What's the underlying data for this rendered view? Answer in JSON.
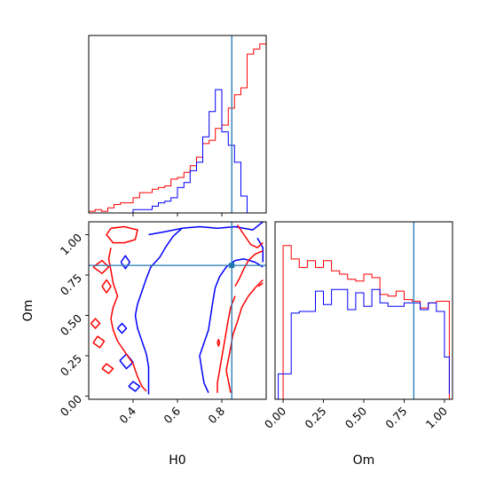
{
  "chart_data": {
    "type": "corner",
    "parameters": [
      "H0",
      "Om"
    ],
    "truth": {
      "H0": 0.845,
      "Om": 0.81,
      "color": "#1f77b4"
    },
    "series_colors": [
      "#ff0000",
      "#0000ff"
    ],
    "panels": {
      "hist_H0": {
        "xlim": [
          0.2,
          1.0
        ],
        "bin_edges": [
          0.2,
          0.229,
          0.257,
          0.286,
          0.314,
          0.343,
          0.371,
          0.4,
          0.429,
          0.457,
          0.486,
          0.514,
          0.543,
          0.571,
          0.6,
          0.629,
          0.657,
          0.686,
          0.714,
          0.743,
          0.771,
          0.8,
          0.829,
          0.857,
          0.886,
          0.914,
          0.943,
          0.971,
          1.0
        ],
        "series": [
          {
            "color": "red",
            "values": [
              0.01,
              0.02,
              0.01,
              0.03,
              0.05,
              0.06,
              0.06,
              0.09,
              0.12,
              0.12,
              0.14,
              0.15,
              0.16,
              0.2,
              0.21,
              0.24,
              0.28,
              0.33,
              0.41,
              0.43,
              0.5,
              0.52,
              0.62,
              0.7,
              0.74,
              0.94,
              0.97,
              1.0
            ]
          },
          {
            "color": "blue",
            "values": [
              0.0,
              0.0,
              0.0,
              0.0,
              0.0,
              0.0,
              0.0,
              0.02,
              0.02,
              0.02,
              0.04,
              0.06,
              0.07,
              0.09,
              0.15,
              0.18,
              0.25,
              0.3,
              0.45,
              0.6,
              0.73,
              0.48,
              0.4,
              0.3,
              0.1,
              0.0,
              0.0,
              0.0
            ]
          }
        ]
      },
      "hist_Om": {
        "xlim": [
          -0.05,
          1.05
        ],
        "xticks": [
          0.0,
          0.25,
          0.5,
          0.75,
          1.0
        ],
        "xticklabels": [
          "0.00",
          "0.25",
          "0.50",
          "0.75",
          "1.00"
        ],
        "bin_edges": [
          -0.03,
          0.0,
          0.05,
          0.1,
          0.15,
          0.2,
          0.25,
          0.3,
          0.35,
          0.4,
          0.45,
          0.5,
          0.55,
          0.6,
          0.65,
          0.7,
          0.75,
          0.8,
          0.85,
          0.9,
          0.95,
          1.0,
          1.03
        ],
        "series": [
          {
            "color": "red",
            "values": [
              0.0,
              0.91,
              0.83,
              0.78,
              0.82,
              0.78,
              0.82,
              0.76,
              0.74,
              0.71,
              0.7,
              0.74,
              0.72,
              0.62,
              0.61,
              0.64,
              0.59,
              0.58,
              0.54,
              0.57,
              0.58,
              0.58,
              0.0
            ]
          },
          {
            "color": "blue",
            "values": [
              0.15,
              0.15,
              0.51,
              0.52,
              0.52,
              0.64,
              0.56,
              0.65,
              0.65,
              0.53,
              0.63,
              0.55,
              0.65,
              0.57,
              0.55,
              0.55,
              0.57,
              0.57,
              0.53,
              0.57,
              0.52,
              0.25,
              0.03
            ]
          }
        ]
      },
      "scatter_H0_Om": {
        "xlim": [
          0.2,
          1.0
        ],
        "ylim": [
          -0.02,
          1.08
        ],
        "xticks": [
          0.4,
          0.6,
          0.8
        ],
        "xticklabels": [
          "0.4",
          "0.6",
          "0.8"
        ],
        "yticks": [
          0.0,
          0.25,
          0.5,
          0.75,
          1.0
        ],
        "yticklabels": [
          "0.00",
          "0.25",
          "0.50",
          "0.75",
          "1.00"
        ],
        "xlabel": "H0",
        "ylabel": "Om",
        "contours": [
          {
            "color": "blue",
            "points": [
              [
                0.47,
                1.0
              ],
              [
                0.55,
                1.02
              ],
              [
                0.62,
                1.04
              ],
              [
                0.7,
                1.05
              ],
              [
                0.78,
                1.04
              ],
              [
                0.86,
                1.05
              ],
              [
                0.94,
                1.03
              ],
              [
                0.985,
                1.08
              ]
            ]
          },
          {
            "color": "blue",
            "points": [
              [
                0.62,
                1.04
              ],
              [
                0.58,
                0.99
              ],
              [
                0.55,
                0.93
              ],
              [
                0.52,
                0.86
              ],
              [
                0.48,
                0.8
              ],
              [
                0.46,
                0.73
              ],
              [
                0.44,
                0.65
              ],
              [
                0.42,
                0.57
              ],
              [
                0.41,
                0.5
              ],
              [
                0.42,
                0.42
              ],
              [
                0.44,
                0.34
              ],
              [
                0.46,
                0.26
              ],
              [
                0.47,
                0.18
              ],
              [
                0.47,
                0.09
              ],
              [
                0.47,
                0.01
              ]
            ]
          },
          {
            "color": "blue",
            "points": [
              [
                0.74,
                0.02
              ],
              [
                0.72,
                0.08
              ],
              [
                0.71,
                0.16
              ],
              [
                0.7,
                0.25
              ],
              [
                0.72,
                0.33
              ],
              [
                0.74,
                0.41
              ],
              [
                0.75,
                0.5
              ],
              [
                0.76,
                0.59
              ],
              [
                0.77,
                0.67
              ],
              [
                0.79,
                0.74
              ],
              [
                0.82,
                0.8
              ],
              [
                0.86,
                0.84
              ],
              [
                0.9,
                0.85
              ],
              [
                0.95,
                0.83
              ],
              [
                0.985,
                0.8
              ]
            ]
          },
          {
            "color": "blue",
            "points": [
              [
                0.96,
                0.98
              ],
              [
                0.985,
                0.92
              ],
              [
                0.985,
                0.83
              ]
            ]
          },
          {
            "color": "blue",
            "points": [
              [
                0.345,
                0.83
              ],
              [
                0.365,
                0.79
              ],
              [
                0.385,
                0.83
              ],
              [
                0.365,
                0.87
              ],
              [
                0.345,
                0.83
              ]
            ]
          },
          {
            "color": "blue",
            "points": [
              [
                0.34,
                0.22
              ],
              [
                0.37,
                0.17
              ],
              [
                0.4,
                0.21
              ],
              [
                0.37,
                0.26
              ],
              [
                0.34,
                0.22
              ]
            ]
          },
          {
            "color": "blue",
            "points": [
              [
                0.38,
                0.06
              ],
              [
                0.41,
                0.03
              ],
              [
                0.43,
                0.06
              ],
              [
                0.4,
                0.09
              ],
              [
                0.38,
                0.06
              ]
            ]
          },
          {
            "color": "blue",
            "points": [
              [
                0.33,
                0.42
              ],
              [
                0.35,
                0.39
              ],
              [
                0.37,
                0.42
              ],
              [
                0.35,
                0.45
              ],
              [
                0.33,
                0.42
              ]
            ]
          },
          {
            "color": "red",
            "points": [
              [
                0.3,
                1.04
              ],
              [
                0.36,
                1.05
              ],
              [
                0.42,
                1.03
              ],
              [
                0.41,
                0.97
              ],
              [
                0.36,
                0.95
              ],
              [
                0.31,
                0.95
              ],
              [
                0.28,
                1.0
              ],
              [
                0.3,
                1.04
              ]
            ]
          },
          {
            "color": "red",
            "points": [
              [
                0.22,
                0.8
              ],
              [
                0.26,
                0.76
              ],
              [
                0.29,
                0.8
              ],
              [
                0.26,
                0.84
              ],
              [
                0.22,
                0.8
              ]
            ]
          },
          {
            "color": "red",
            "points": [
              [
                0.26,
                0.68
              ],
              [
                0.28,
                0.64
              ],
              [
                0.3,
                0.68
              ],
              [
                0.28,
                0.72
              ],
              [
                0.26,
                0.68
              ]
            ]
          },
          {
            "color": "red",
            "points": [
              [
                0.3,
                0.92
              ],
              [
                0.29,
                0.85
              ],
              [
                0.3,
                0.78
              ],
              [
                0.31,
                0.7
              ],
              [
                0.33,
                0.62
              ],
              [
                0.31,
                0.55
              ],
              [
                0.3,
                0.48
              ],
              [
                0.31,
                0.41
              ],
              [
                0.33,
                0.34
              ],
              [
                0.36,
                0.28
              ],
              [
                0.4,
                0.2
              ],
              [
                0.42,
                0.12
              ],
              [
                0.44,
                0.06
              ],
              [
                0.46,
                0.03
              ]
            ]
          },
          {
            "color": "red",
            "points": [
              [
                0.22,
                0.33
              ],
              [
                0.25,
                0.3
              ],
              [
                0.27,
                0.34
              ],
              [
                0.24,
                0.37
              ],
              [
                0.22,
                0.33
              ]
            ]
          },
          {
            "color": "red",
            "points": [
              [
                0.26,
                0.17
              ],
              [
                0.29,
                0.14
              ],
              [
                0.31,
                0.17
              ],
              [
                0.28,
                0.2
              ],
              [
                0.26,
                0.17
              ]
            ]
          },
          {
            "color": "red",
            "points": [
              [
                0.21,
                0.45
              ],
              [
                0.23,
                0.42
              ],
              [
                0.25,
                0.45
              ],
              [
                0.23,
                0.48
              ],
              [
                0.21,
                0.45
              ]
            ]
          },
          {
            "color": "red",
            "points": [
              [
                0.87,
                1.06
              ],
              [
                0.9,
                1.0
              ],
              [
                0.93,
                0.94
              ],
              [
                0.96,
                0.92
              ],
              [
                0.985,
                0.95
              ]
            ]
          },
          {
            "color": "red",
            "points": [
              [
                0.86,
                0.62
              ],
              [
                0.84,
                0.55
              ],
              [
                0.83,
                0.48
              ],
              [
                0.82,
                0.4
              ],
              [
                0.81,
                0.32
              ],
              [
                0.8,
                0.24
              ],
              [
                0.79,
                0.16
              ],
              [
                0.78,
                0.08
              ],
              [
                0.78,
                0.02
              ]
            ]
          },
          {
            "color": "red",
            "points": [
              [
                0.84,
                0.02
              ],
              [
                0.83,
                0.09
              ],
              [
                0.82,
                0.16
              ],
              [
                0.83,
                0.23
              ],
              [
                0.84,
                0.3
              ],
              [
                0.85,
                0.38
              ],
              [
                0.87,
                0.46
              ],
              [
                0.89,
                0.55
              ],
              [
                0.92,
                0.62
              ],
              [
                0.95,
                0.67
              ],
              [
                0.985,
                0.72
              ]
            ]
          },
          {
            "color": "red",
            "points": [
              [
                0.86,
                0.68
              ],
              [
                0.88,
                0.73
              ],
              [
                0.9,
                0.79
              ],
              [
                0.92,
                0.84
              ],
              [
                0.95,
                0.88
              ],
              [
                0.985,
                0.9
              ]
            ]
          },
          {
            "color": "red",
            "points": [
              [
                0.78,
                0.33
              ],
              [
                0.785,
                0.35
              ],
              [
                0.79,
                0.33
              ],
              [
                0.785,
                0.31
              ],
              [
                0.78,
                0.33
              ]
            ]
          },
          {
            "color": "red",
            "points": [
              [
                0.965,
                0.68
              ],
              [
                0.985,
                0.7
              ]
            ]
          }
        ]
      }
    }
  }
}
